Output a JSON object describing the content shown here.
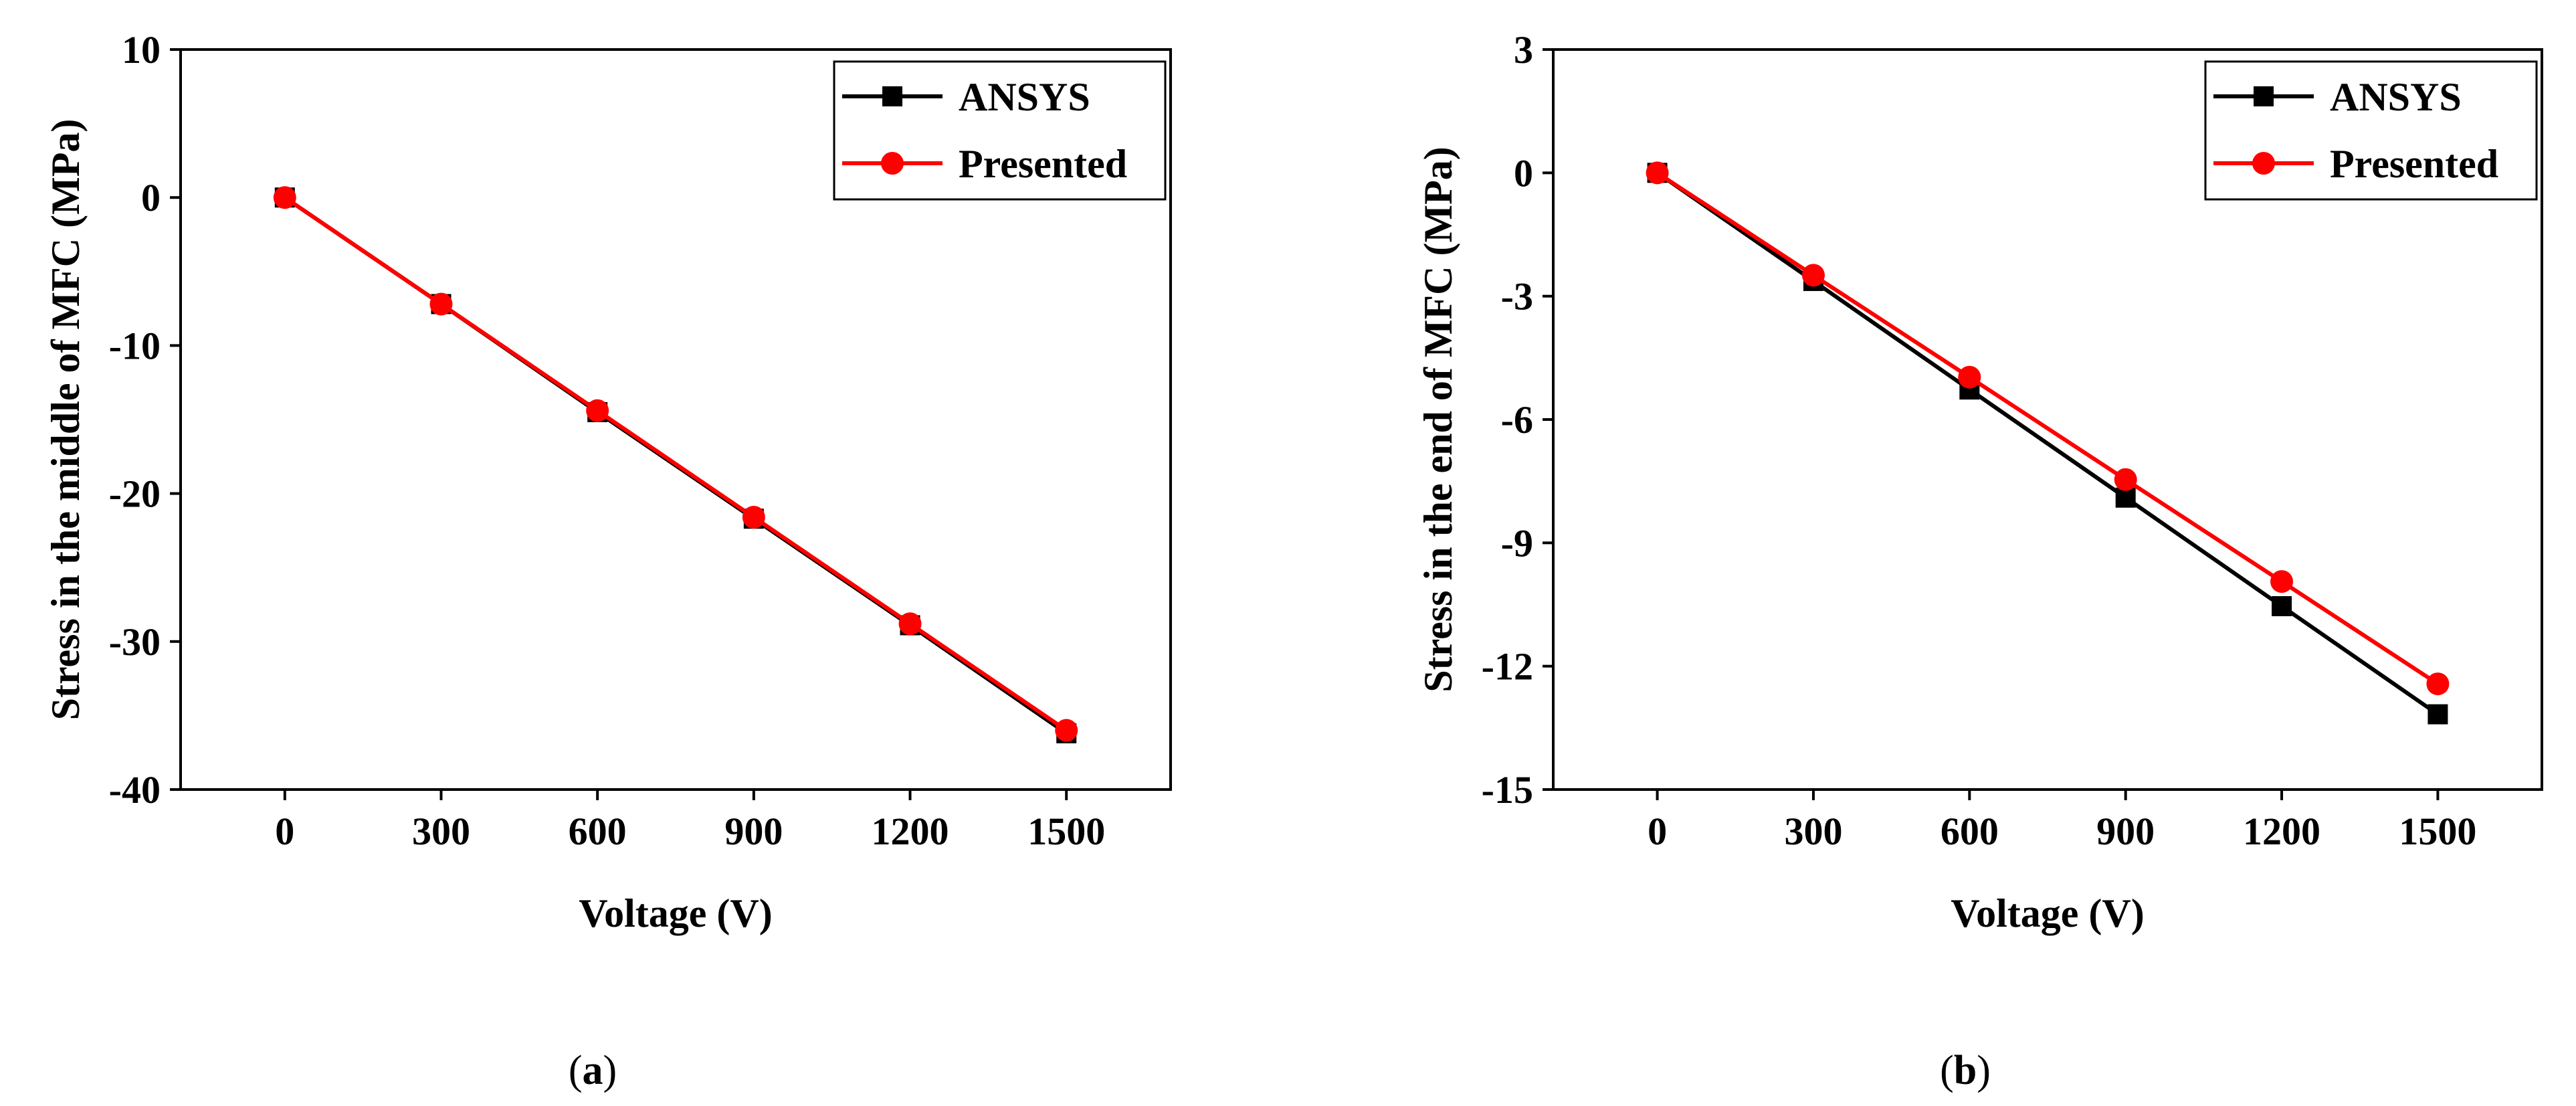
{
  "colors": {
    "ansys": "#000000",
    "presented": "#ff0000"
  },
  "chart_data": [
    {
      "type": "line",
      "panel_label": "a",
      "xlabel": "Voltage (V)",
      "ylabel": "Stress in the middle of MFC (MPa)",
      "x": [
        0,
        300,
        600,
        900,
        1200,
        1500
      ],
      "x_ticks": [
        "0",
        "300",
        "600",
        "900",
        "1200",
        "1500"
      ],
      "xlim": [
        -200,
        1700
      ],
      "ylim": [
        -40,
        10
      ],
      "y_ticks": [
        10,
        0,
        -10,
        -20,
        -30,
        -40
      ],
      "y_tick_labels": [
        "10",
        "0",
        "-10",
        "-20",
        "-30",
        "-40"
      ],
      "series": [
        {
          "name": "ANSYS",
          "marker": "square",
          "values": [
            0,
            -7.2,
            -14.5,
            -21.7,
            -28.9,
            -36.2
          ]
        },
        {
          "name": "Presented",
          "marker": "circle",
          "values": [
            0,
            -7.2,
            -14.4,
            -21.6,
            -28.8,
            -36.0
          ]
        }
      ],
      "legend": "top-right"
    },
    {
      "type": "line",
      "panel_label": "b",
      "xlabel": "Voltage (V)",
      "ylabel": "Stress in the end of MFC (MPa)",
      "x": [
        0,
        300,
        600,
        900,
        1200,
        1500
      ],
      "x_ticks": [
        "0",
        "300",
        "600",
        "900",
        "1200",
        "1500"
      ],
      "xlim": [
        -200,
        1700
      ],
      "ylim": [
        -15,
        3
      ],
      "y_ticks": [
        3,
        0,
        -3,
        -6,
        -9,
        -12,
        -15
      ],
      "y_tick_labels": [
        "3",
        "0",
        "-3",
        "-6",
        "-9",
        "-12",
        "-15"
      ],
      "series": [
        {
          "name": "ANSYS",
          "marker": "square",
          "values": [
            0,
            -2.63,
            -5.27,
            -7.9,
            -10.54,
            -13.17
          ]
        },
        {
          "name": "Presented",
          "marker": "circle",
          "values": [
            0,
            -2.49,
            -4.97,
            -7.46,
            -9.94,
            -12.43
          ]
        }
      ],
      "legend": "top-right"
    }
  ]
}
